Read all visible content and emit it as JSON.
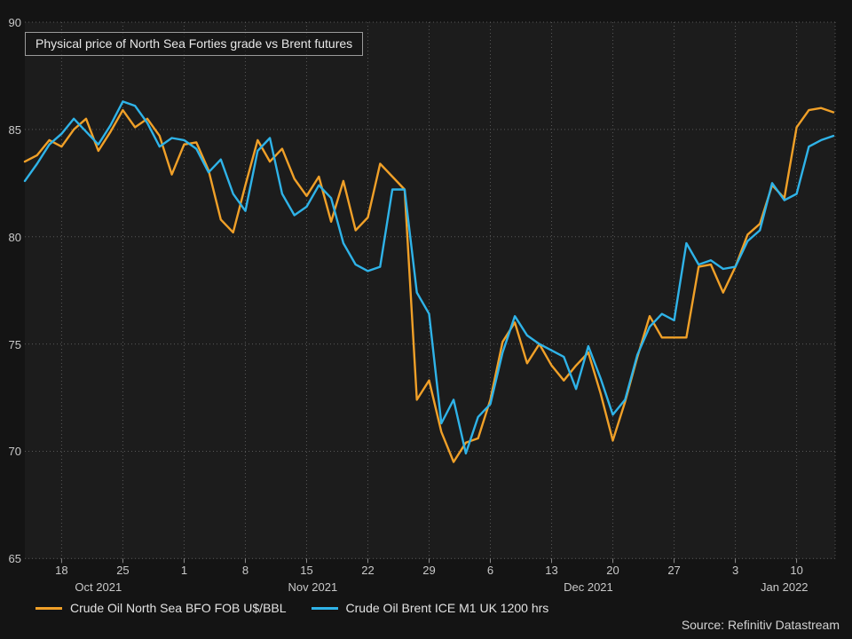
{
  "title": "Physical price of North Sea Forties grade vs Brent futures",
  "source": "Source: Refinitiv Datastream",
  "colors": {
    "forties": "#f0a028",
    "brent": "#2fb3e8",
    "grid": "#585858",
    "tick": "#8a8a8a",
    "text": "#c9c9c9"
  },
  "chart_data": {
    "type": "line",
    "title": "Physical price of North Sea Forties grade vs Brent futures",
    "ylabel": "U$/BBL",
    "ylim": [
      65,
      90
    ],
    "yticks": [
      90,
      85,
      80,
      75,
      70,
      65
    ],
    "grid": "dotted",
    "legend_position": "bottom",
    "x": [
      "Oct 13",
      "Oct 14",
      "Oct 15",
      "Oct 18",
      "Oct 19",
      "Oct 20",
      "Oct 21",
      "Oct 22",
      "Oct 25",
      "Oct 26",
      "Oct 27",
      "Oct 28",
      "Oct 29",
      "Nov 1",
      "Nov 2",
      "Nov 3",
      "Nov 4",
      "Nov 5",
      "Nov 8",
      "Nov 9",
      "Nov 10",
      "Nov 11",
      "Nov 12",
      "Nov 15",
      "Nov 16",
      "Nov 17",
      "Nov 18",
      "Nov 19",
      "Nov 22",
      "Nov 23",
      "Nov 24",
      "Nov 25",
      "Nov 26",
      "Nov 29",
      "Nov 30",
      "Dec 1",
      "Dec 2",
      "Dec 3",
      "Dec 6",
      "Dec 7",
      "Dec 8",
      "Dec 9",
      "Dec 10",
      "Dec 13",
      "Dec 14",
      "Dec 15",
      "Dec 16",
      "Dec 17",
      "Dec 20",
      "Dec 21",
      "Dec 22",
      "Dec 23",
      "Dec 24",
      "Dec 27",
      "Dec 28",
      "Dec 29",
      "Dec 30",
      "Dec 31",
      "Jan 3",
      "Jan 4",
      "Jan 5",
      "Jan 6",
      "Jan 7",
      "Jan 10",
      "Jan 11",
      "Jan 12",
      "Jan 13"
    ],
    "series": [
      {
        "name": "Crude Oil North Sea BFO FOB U$/BBL",
        "color_key": "forties",
        "values": [
          83.5,
          83.8,
          84.5,
          84.2,
          85.0,
          85.5,
          84.0,
          84.9,
          85.9,
          85.1,
          85.5,
          84.7,
          82.9,
          84.3,
          84.4,
          83.1,
          80.8,
          80.2,
          82.4,
          84.5,
          83.5,
          84.1,
          82.7,
          81.9,
          82.8,
          80.7,
          82.6,
          80.3,
          80.9,
          83.4,
          82.8,
          82.2,
          72.4,
          73.3,
          70.9,
          69.5,
          70.4,
          70.6,
          72.4,
          75.1,
          76.0,
          74.1,
          75.0,
          74.0,
          73.3,
          74.0,
          74.6,
          72.7,
          70.5,
          72.3,
          74.4,
          76.3,
          75.3,
          75.3,
          75.3,
          78.6,
          78.7,
          77.4,
          78.6,
          80.1,
          80.6,
          82.4,
          81.8,
          85.1,
          85.9,
          86.0,
          85.8
        ]
      },
      {
        "name": "Crude Oil Brent ICE M1 UK 1200 hrs",
        "color_key": "brent",
        "values": [
          82.6,
          83.4,
          84.3,
          84.8,
          85.5,
          84.9,
          84.3,
          85.2,
          86.3,
          86.1,
          85.3,
          84.2,
          84.6,
          84.5,
          84.1,
          83.0,
          83.6,
          82.0,
          81.2,
          84.0,
          84.6,
          82.0,
          81.0,
          81.4,
          82.4,
          81.8,
          79.7,
          78.7,
          78.4,
          78.6,
          82.2,
          82.2,
          77.4,
          76.4,
          71.3,
          72.4,
          69.9,
          71.6,
          72.2,
          74.6,
          76.3,
          75.4,
          75.0,
          74.7,
          74.4,
          72.9,
          74.9,
          73.4,
          71.7,
          72.4,
          74.5,
          75.8,
          76.4,
          76.1,
          79.7,
          78.7,
          78.9,
          78.5,
          78.6,
          79.8,
          80.3,
          82.5,
          81.7,
          82.0,
          84.2,
          84.5,
          84.7
        ]
      }
    ],
    "week_ticks": [
      {
        "index": 3,
        "label": "18"
      },
      {
        "index": 8,
        "label": "25"
      },
      {
        "index": 13,
        "label": "1"
      },
      {
        "index": 18,
        "label": "8"
      },
      {
        "index": 23,
        "label": "15"
      },
      {
        "index": 28,
        "label": "22"
      },
      {
        "index": 33,
        "label": "29"
      },
      {
        "index": 38,
        "label": "6"
      },
      {
        "index": 43,
        "label": "13"
      },
      {
        "index": 48,
        "label": "20"
      },
      {
        "index": 53,
        "label": "27"
      },
      {
        "index": 58,
        "label": "3"
      },
      {
        "index": 63,
        "label": "10"
      }
    ],
    "month_labels": [
      {
        "label": "Oct 2021",
        "mid_index": 6
      },
      {
        "label": "Nov 2021",
        "mid_index": 23.5
      },
      {
        "label": "Dec 2021",
        "mid_index": 46
      },
      {
        "label": "Jan 2022",
        "mid_index": 62
      }
    ]
  }
}
